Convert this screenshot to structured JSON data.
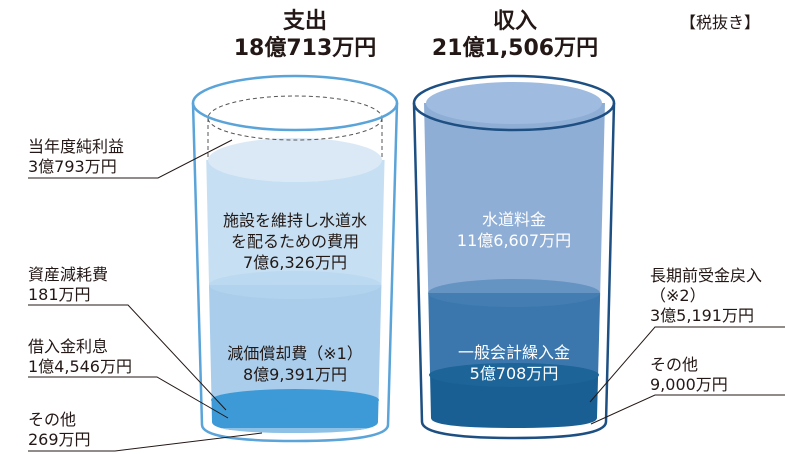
{
  "tax_note": "【税抜き】",
  "expenditure": {
    "title": "支出",
    "total": "18億713万円",
    "segments": [
      {
        "label": "当年度純利益",
        "value": "3億793万円"
      },
      {
        "label": "施設を維持し水道水を配るための費用",
        "label_lines": [
          "施設を維持し水道水",
          "を配るための費用"
        ],
        "value": "7億6,326万円"
      },
      {
        "label": "減価償却費（※1）",
        "value": "8億9,391万円"
      },
      {
        "label": "資産減耗費",
        "value": "181万円"
      },
      {
        "label": "借入金利息",
        "value": "1億4,546万円"
      },
      {
        "label": "その他",
        "value": "269万円"
      }
    ]
  },
  "revenue": {
    "title": "収入",
    "total": "21億1,506万円",
    "segments": [
      {
        "label": "水道料金",
        "value": "11億6,607万円"
      },
      {
        "label": "一般会計繰入金",
        "value": "5億708万円"
      },
      {
        "label": "長期前受金戻入",
        "label_line2": "（※2）",
        "value": "3億5,191万円"
      },
      {
        "label": "その他",
        "value": "9,000万円"
      }
    ]
  },
  "colors": {
    "left_glass_outline": "#5ba4d9",
    "profit_fill": "#dbe9f6",
    "operating_cost_fill": "#c6dff2",
    "depreciation_fill": "#a9cdeb",
    "interest_fill": "#3d9ad6",
    "right_glass_outline": "#1d4f82",
    "water_fee_fill": "#8faed6",
    "general_account_fill": "#3b77ad",
    "deferred_revenue_fill": "#1a5f93",
    "leader_line": "#231815"
  }
}
